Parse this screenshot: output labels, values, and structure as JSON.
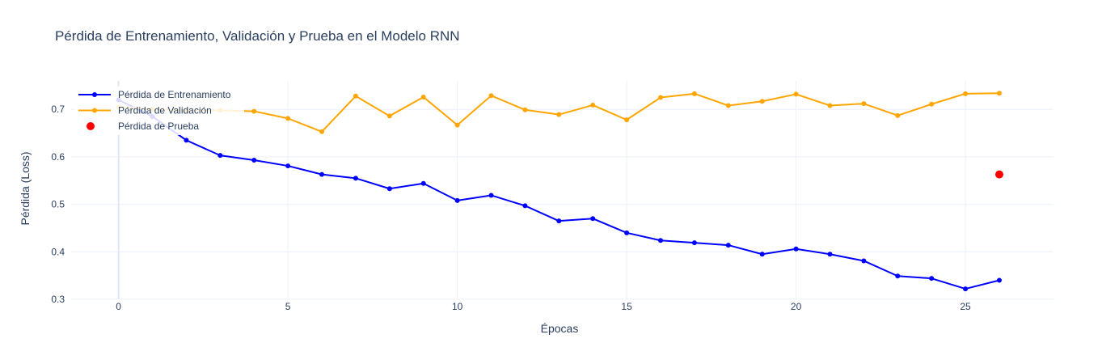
{
  "chart_data": {
    "type": "line",
    "title": "Pérdida de Entrenamiento, Validación y Prueba en el Modelo RNN",
    "xlabel": "Épocas",
    "ylabel": "Pérdida (Loss)",
    "xlim": [
      -1.4,
      27.6
    ],
    "ylim": [
      0.3,
      0.76
    ],
    "xticks": [
      0,
      5,
      10,
      15,
      20,
      25
    ],
    "xtick_labels": [
      "0",
      "5",
      "10",
      "15",
      "20",
      "25"
    ],
    "yticks": [
      0.3,
      0.4,
      0.5,
      0.6,
      0.7
    ],
    "ytick_labels": [
      "0.3",
      "0.4",
      "0.5",
      "0.6",
      "0.7"
    ],
    "grid": true,
    "legend_position": "top-left",
    "series": [
      {
        "name": "Pérdida de Entrenamiento",
        "mode": "lines+markers",
        "color": "#0000ff",
        "x": [
          0,
          1,
          2,
          3,
          4,
          5,
          6,
          7,
          8,
          9,
          10,
          11,
          12,
          13,
          14,
          15,
          16,
          17,
          18,
          19,
          20,
          21,
          22,
          23,
          24,
          25,
          26
        ],
        "values": [
          0.72,
          0.685,
          0.635,
          0.603,
          0.593,
          0.581,
          0.563,
          0.555,
          0.533,
          0.544,
          0.508,
          0.519,
          0.497,
          0.465,
          0.47,
          0.44,
          0.424,
          0.419,
          0.414,
          0.395,
          0.406,
          0.395,
          0.381,
          0.349,
          0.344,
          0.322,
          0.34
        ]
      },
      {
        "name": "Pérdida de Validación",
        "mode": "lines+markers",
        "color": "#ffa500",
        "x": [
          0,
          1,
          2,
          3,
          4,
          5,
          6,
          7,
          8,
          9,
          10,
          11,
          12,
          13,
          14,
          15,
          16,
          17,
          18,
          19,
          20,
          21,
          22,
          23,
          24,
          25,
          26
        ],
        "values": [
          0.705,
          0.7,
          0.698,
          0.698,
          0.696,
          0.681,
          0.653,
          0.728,
          0.686,
          0.726,
          0.667,
          0.729,
          0.699,
          0.689,
          0.709,
          0.678,
          0.725,
          0.733,
          0.708,
          0.717,
          0.732,
          0.708,
          0.712,
          0.687,
          0.711,
          0.733,
          0.734
        ]
      },
      {
        "name": "Pérdida de Prueba",
        "mode": "markers",
        "color": "#ff0000",
        "x": [
          26
        ],
        "values": [
          0.563
        ]
      }
    ]
  }
}
